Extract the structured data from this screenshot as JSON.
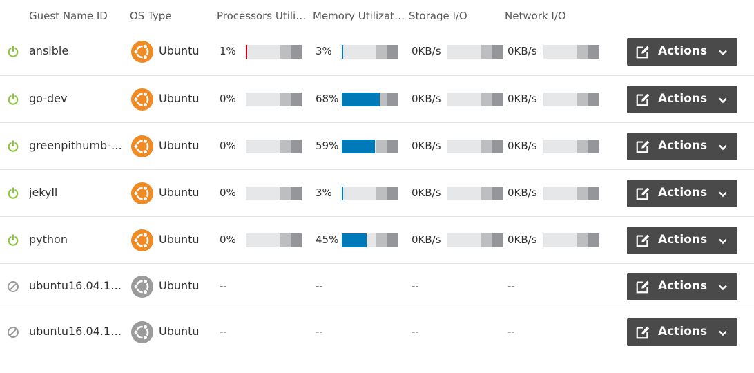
{
  "columns": {
    "name": "Guest Name ID",
    "os": "OS Type",
    "cpu": "Processors Utiliz...",
    "mem": "Memory Utilizati...",
    "storage": "Storage I/O",
    "network": "Network I/O"
  },
  "actions_label": "Actions",
  "colors": {
    "cpu_fill": "#d0021b",
    "mem_fill": "#0079b8",
    "power_on": "#8cc63f",
    "ubuntu": "#f08a24",
    "disabled": "#9b9b9b"
  },
  "rows": [
    {
      "name": "ansible",
      "os": "Ubuntu",
      "state": "running",
      "cpu": "1%",
      "cpu_pct": 1,
      "mem": "3%",
      "mem_pct": 3,
      "storage": "0KB/s",
      "network": "0KB/s"
    },
    {
      "name": "go-dev",
      "os": "Ubuntu",
      "state": "running",
      "cpu": "0%",
      "cpu_pct": 0,
      "mem": "68%",
      "mem_pct": 68,
      "storage": "0KB/s",
      "network": "0KB/s"
    },
    {
      "name": "greenpithumb-d...",
      "os": "Ubuntu",
      "state": "running",
      "cpu": "0%",
      "cpu_pct": 0,
      "mem": "59%",
      "mem_pct": 59,
      "storage": "0KB/s",
      "network": "0KB/s"
    },
    {
      "name": "jekyll",
      "os": "Ubuntu",
      "state": "running",
      "cpu": "0%",
      "cpu_pct": 0,
      "mem": "3%",
      "mem_pct": 3,
      "storage": "0KB/s",
      "network": "0KB/s"
    },
    {
      "name": "python",
      "os": "Ubuntu",
      "state": "running",
      "cpu": "0%",
      "cpu_pct": 0,
      "mem": "45%",
      "mem_pct": 45,
      "storage": "0KB/s",
      "network": "0KB/s"
    },
    {
      "name": "ubuntu16.04.149...",
      "os": "Ubuntu",
      "state": "stopped",
      "cpu": "--",
      "mem": "--",
      "storage": "--",
      "network": "--"
    },
    {
      "name": "ubuntu16.04.149...",
      "os": "Ubuntu",
      "state": "stopped",
      "cpu": "--",
      "mem": "--",
      "storage": "--",
      "network": "--"
    }
  ]
}
